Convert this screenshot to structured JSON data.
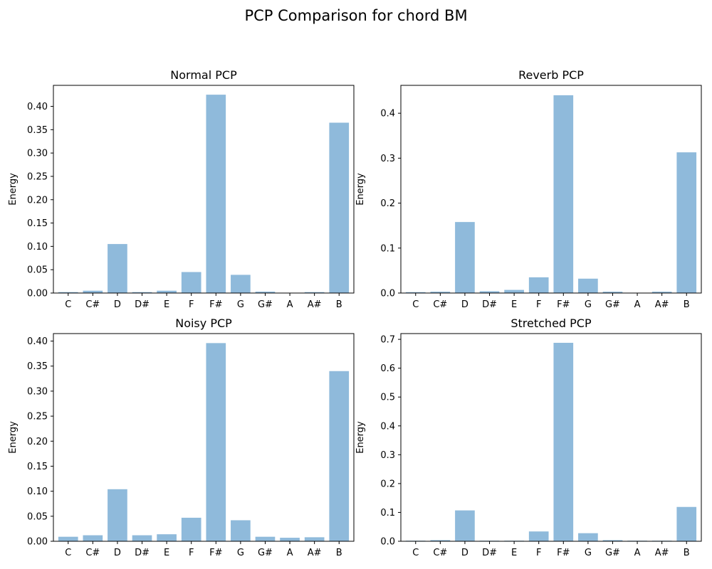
{
  "figure": {
    "title": "PCP Comparison for chord BM"
  },
  "chart_data": [
    {
      "type": "bar",
      "title": "Normal PCP",
      "xlabel": "",
      "ylabel": "Energy",
      "categories": [
        "C",
        "C#",
        "D",
        "D#",
        "E",
        "F",
        "F#",
        "G",
        "G#",
        "A",
        "A#",
        "B"
      ],
      "values": [
        0.002,
        0.005,
        0.105,
        0.002,
        0.005,
        0.045,
        0.425,
        0.039,
        0.003,
        0.0,
        0.002,
        0.365
      ],
      "ylim": [
        0,
        0.445
      ],
      "yticks": [
        0.0,
        0.05,
        0.1,
        0.15,
        0.2,
        0.25,
        0.3,
        0.35,
        0.4
      ],
      "ytick_labels": [
        "0.00",
        "0.05",
        "0.10",
        "0.15",
        "0.20",
        "0.25",
        "0.30",
        "0.35",
        "0.40"
      ],
      "bar_color": "#8fbadb",
      "grid": false
    },
    {
      "type": "bar",
      "title": "Reverb PCP",
      "xlabel": "",
      "ylabel": "Energy",
      "categories": [
        "C",
        "C#",
        "D",
        "D#",
        "E",
        "F",
        "F#",
        "G",
        "G#",
        "A",
        "A#",
        "B"
      ],
      "values": [
        0.002,
        0.003,
        0.158,
        0.004,
        0.007,
        0.035,
        0.44,
        0.032,
        0.003,
        0.0,
        0.003,
        0.313
      ],
      "ylim": [
        0,
        0.462
      ],
      "yticks": [
        0.0,
        0.1,
        0.2,
        0.3,
        0.4
      ],
      "ytick_labels": [
        "0.0",
        "0.1",
        "0.2",
        "0.3",
        "0.4"
      ],
      "bar_color": "#8fbadb",
      "grid": false
    },
    {
      "type": "bar",
      "title": "Noisy PCP",
      "xlabel": "",
      "ylabel": "Energy",
      "categories": [
        "C",
        "C#",
        "D",
        "D#",
        "E",
        "F",
        "F#",
        "G",
        "G#",
        "A",
        "A#",
        "B"
      ],
      "values": [
        0.009,
        0.012,
        0.104,
        0.012,
        0.014,
        0.047,
        0.396,
        0.042,
        0.009,
        0.007,
        0.008,
        0.34
      ],
      "ylim": [
        0,
        0.415
      ],
      "yticks": [
        0.0,
        0.05,
        0.1,
        0.15,
        0.2,
        0.25,
        0.3,
        0.35,
        0.4
      ],
      "ytick_labels": [
        "0.00",
        "0.05",
        "0.10",
        "0.15",
        "0.20",
        "0.25",
        "0.30",
        "0.35",
        "0.40"
      ],
      "bar_color": "#8fbadb",
      "grid": false
    },
    {
      "type": "bar",
      "title": "Stretched PCP",
      "xlabel": "",
      "ylabel": "Energy",
      "categories": [
        "C",
        "C#",
        "D",
        "D#",
        "E",
        "F",
        "F#",
        "G",
        "G#",
        "A",
        "A#",
        "B"
      ],
      "values": [
        0.002,
        0.004,
        0.107,
        0.002,
        0.002,
        0.034,
        0.688,
        0.028,
        0.004,
        0.002,
        0.002,
        0.119
      ],
      "ylim": [
        0,
        0.72
      ],
      "yticks": [
        0.0,
        0.1,
        0.2,
        0.3,
        0.4,
        0.5,
        0.6,
        0.7
      ],
      "ytick_labels": [
        "0.0",
        "0.1",
        "0.2",
        "0.3",
        "0.4",
        "0.5",
        "0.6",
        "0.7"
      ],
      "bar_color": "#8fbadb",
      "grid": false
    }
  ]
}
